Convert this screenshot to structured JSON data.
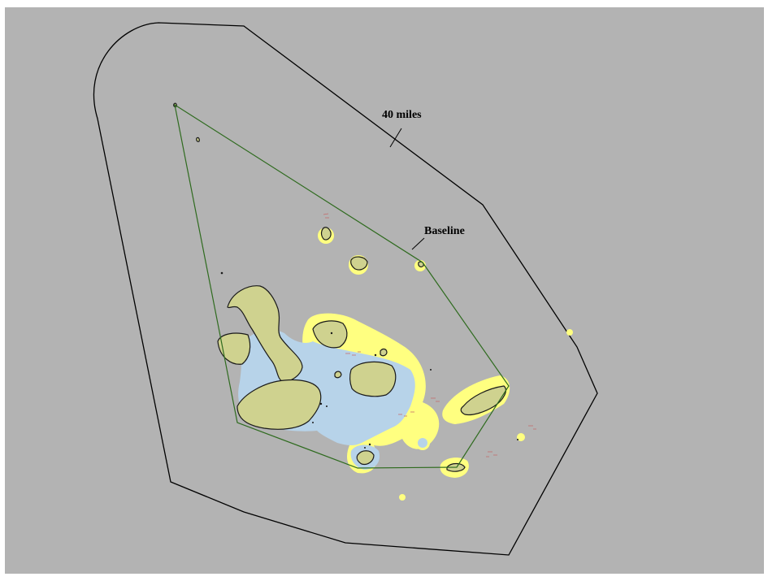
{
  "map": {
    "labels": {
      "limit_label": "40 miles",
      "baseline_label": "Baseline"
    },
    "colors": {
      "background": "#b3b3b3",
      "land": "#cfd28f",
      "shallow_water": "#b7d3e9",
      "shoal": "#ffff80",
      "baseline_line": "#2f6b1f",
      "limit_line": "#000000",
      "coast_outline": "#1a1a1a",
      "soundings": "#c46a6a"
    }
  }
}
